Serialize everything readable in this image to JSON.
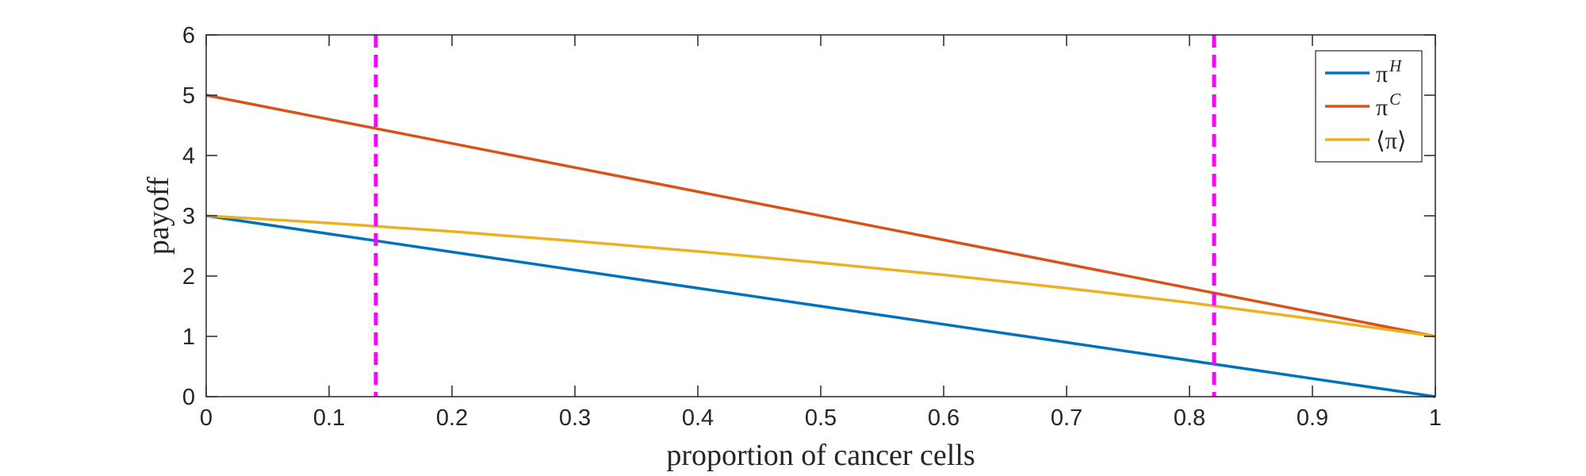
{
  "chart_data": {
    "type": "line",
    "xlabel": "proportion of cancer cells",
    "ylabel": "payoff",
    "xlim": [
      0,
      1
    ],
    "ylim": [
      0,
      6
    ],
    "x_ticks": [
      "0",
      "0.1",
      "0.2",
      "0.3",
      "0.4",
      "0.5",
      "0.6",
      "0.7",
      "0.8",
      "0.9",
      "1"
    ],
    "y_ticks": [
      "0",
      "1",
      "2",
      "3",
      "4",
      "5",
      "6"
    ],
    "grid": false,
    "legend_position": "top-right",
    "series": [
      {
        "name": "π^H",
        "legend_base": "π",
        "legend_sup": "H",
        "color": "#0072BD",
        "x": [
          0,
          1
        ],
        "y": [
          3,
          0
        ]
      },
      {
        "name": "π^C",
        "legend_base": "π",
        "legend_sup": "C",
        "color": "#D95319",
        "x": [
          0,
          1
        ],
        "y": [
          5,
          1
        ]
      },
      {
        "name": "⟨π⟩",
        "legend_base": "⟨π⟩",
        "legend_sup": "",
        "color": "#EDB120",
        "x": [
          0,
          0.1,
          0.2,
          0.3,
          0.4,
          0.5,
          0.6,
          0.7,
          0.8,
          0.9,
          1
        ],
        "y": [
          3,
          2.88,
          2.74,
          2.58,
          2.41,
          2.22,
          2.02,
          1.8,
          1.56,
          1.29,
          1
        ]
      }
    ],
    "vlines": [
      {
        "x": 0.138,
        "color": "#FF00FF",
        "style": "dashed"
      },
      {
        "x": 0.82,
        "color": "#FF00FF",
        "style": "dashed"
      }
    ]
  }
}
